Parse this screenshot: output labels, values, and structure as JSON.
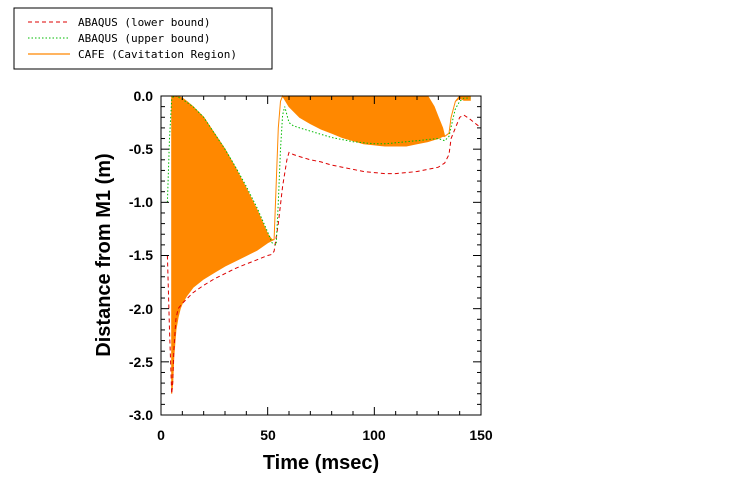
{
  "chart_data": {
    "type": "line",
    "xlabel": "Time (msec)",
    "ylabel": "Distance from M1 (m)",
    "xlim": [
      0,
      150
    ],
    "ylim": [
      -3.0,
      0.0
    ],
    "xticks": [
      0,
      50,
      100,
      150
    ],
    "xtick_labels": [
      "0",
      "50",
      "100",
      "150"
    ],
    "yticks": [
      0.0,
      -0.5,
      -1.0,
      -1.5,
      -2.0,
      -2.5,
      -3.0
    ],
    "ytick_labels": [
      "0.0",
      "-0.5",
      "-1.0",
      "-1.5",
      "-2.0",
      "-2.5",
      "-3.0"
    ],
    "grid": false,
    "legend_position": "top-left, outside plot",
    "colors": {
      "lower": "#dd0000",
      "upper": "#00bb00",
      "cafe": "#ff8800"
    },
    "series": [
      {
        "name": "ABAQUS (lower bound)",
        "style": "dashed",
        "x": [
          3,
          4,
          5,
          5.5,
          6,
          7,
          8,
          10,
          15,
          20,
          25,
          30,
          35,
          40,
          45,
          50,
          52,
          53,
          55,
          57,
          59,
          60,
          62,
          65,
          70,
          75,
          80,
          85,
          90,
          95,
          100,
          105,
          110,
          115,
          120,
          125,
          130,
          133,
          135,
          136,
          138,
          140,
          142,
          145,
          150
        ],
        "y": [
          -1.5,
          -2.2,
          -2.8,
          -2.7,
          -2.4,
          -2.1,
          -2.0,
          -1.95,
          -1.85,
          -1.78,
          -1.72,
          -1.67,
          -1.62,
          -1.58,
          -1.54,
          -1.5,
          -1.49,
          -1.46,
          -1.2,
          -0.85,
          -0.6,
          -0.53,
          -0.55,
          -0.57,
          -0.6,
          -0.62,
          -0.65,
          -0.67,
          -0.69,
          -0.71,
          -0.72,
          -0.73,
          -0.73,
          -0.72,
          -0.71,
          -0.69,
          -0.67,
          -0.63,
          -0.55,
          -0.4,
          -0.3,
          -0.2,
          -0.18,
          -0.22,
          -0.3
        ]
      },
      {
        "name": "ABAQUS (upper bound)",
        "style": "dotted",
        "x": [
          3,
          4,
          5,
          6,
          7,
          8,
          10,
          15,
          20,
          25,
          30,
          35,
          40,
          45,
          50,
          52,
          54,
          55,
          56,
          57,
          58,
          60,
          62,
          65,
          70,
          75,
          80,
          85,
          90,
          95,
          100,
          105,
          110,
          115,
          120,
          125,
          130,
          133,
          135,
          137,
          138,
          140,
          142,
          145
        ],
        "y": [
          -1.0,
          -0.4,
          -0.03,
          0.0,
          0.0,
          -0.01,
          -0.03,
          -0.1,
          -0.2,
          -0.35,
          -0.5,
          -0.67,
          -0.85,
          -1.05,
          -1.28,
          -1.38,
          -1.4,
          -1.0,
          -0.5,
          -0.18,
          -0.1,
          -0.25,
          -0.28,
          -0.3,
          -0.33,
          -0.36,
          -0.39,
          -0.41,
          -0.43,
          -0.44,
          -0.45,
          -0.45,
          -0.44,
          -0.43,
          -0.42,
          -0.41,
          -0.4,
          -0.42,
          -0.38,
          -0.2,
          -0.12,
          -0.05,
          -0.02,
          -0.02
        ]
      },
      {
        "name": "CAFE (Cavitation Region)",
        "style": "solid-filled",
        "x": [
          5,
          5.5,
          6,
          7,
          8,
          9,
          10,
          12,
          15,
          20,
          25,
          30,
          35,
          40,
          45,
          50,
          52,
          53,
          55,
          56,
          57,
          60,
          65,
          70,
          75,
          80,
          85,
          90,
          95,
          100,
          105,
          110,
          115,
          120,
          125,
          128,
          130,
          132,
          133,
          135,
          136,
          138,
          140,
          142,
          145
        ],
        "y_top": [
          0.0,
          0.0,
          0.0,
          0.0,
          0.0,
          -0.01,
          -0.02,
          -0.05,
          -0.1,
          -0.2,
          -0.35,
          -0.5,
          -0.68,
          -0.87,
          -1.07,
          -1.3,
          -1.35,
          -1.35,
          -0.3,
          -0.05,
          0.0,
          0.0,
          0.0,
          0.0,
          0.0,
          0.0,
          0.0,
          0.0,
          0.0,
          0.0,
          0.0,
          0.0,
          0.0,
          0.0,
          0.0,
          -0.1,
          -0.2,
          -0.3,
          -0.38,
          -0.35,
          -0.2,
          -0.05,
          0.0,
          0.0,
          0.0
        ],
        "y_bottom": [
          -2.8,
          -2.7,
          -2.45,
          -2.2,
          -2.08,
          -2.0,
          -1.95,
          -1.88,
          -1.8,
          -1.72,
          -1.66,
          -1.6,
          -1.55,
          -1.5,
          -1.45,
          -1.38,
          -1.36,
          -1.35,
          -0.3,
          -0.05,
          0.0,
          -0.1,
          -0.2,
          -0.26,
          -0.31,
          -0.35,
          -0.39,
          -0.42,
          -0.45,
          -0.46,
          -0.47,
          -0.47,
          -0.47,
          -0.45,
          -0.43,
          -0.41,
          -0.4,
          -0.38,
          -0.38,
          -0.35,
          -0.2,
          -0.05,
          -0.02,
          -0.04,
          -0.04
        ]
      }
    ]
  }
}
